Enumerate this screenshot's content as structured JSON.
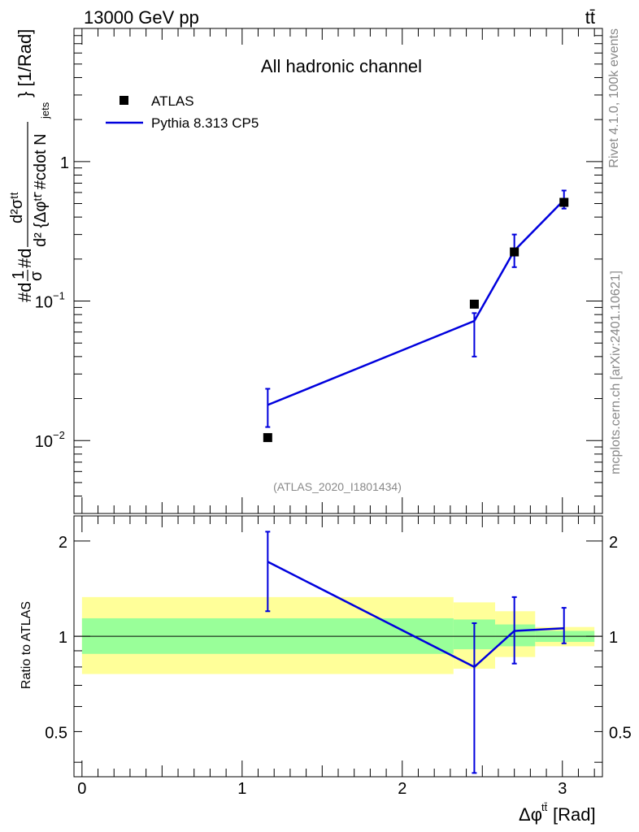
{
  "header": {
    "energy_label": "13000 GeV pp",
    "process_label": "tt̄"
  },
  "side_labels": {
    "rivet": "Rivet 4.1.0,  100k events",
    "mcplots": "mcplots.cern.ch [arXiv:2401.10621]"
  },
  "chart_data": [
    {
      "type": "scatter",
      "title": "All hadronic channel",
      "analysis_label": "(ATLAS_2020_I1801434)",
      "ylabel": "#d1/σ#d d²σ^tt / d²{Δφ^tt̄ #cdot N_jets} [1/Rad]",
      "ylabel_parts": {
        "left": "#d",
        "frac_num": "1",
        "frac_den": "σ",
        "mid": "#d",
        "big_num": "d²σᵗᵗ",
        "big_den": "d² {Δφᵗᵗ̄ #cdot N",
        "big_den_sub": "jets",
        "units": "} [1/Rad]"
      },
      "yscale": "log",
      "ylim": [
        0.003,
        9
      ],
      "xlim": [
        -0.05,
        3.25
      ],
      "yticks": [
        {
          "value": 0.01,
          "label": "10",
          "sup": "−2"
        },
        {
          "value": 0.1,
          "label": "10",
          "sup": "−1"
        },
        {
          "value": 1,
          "label": "1",
          "sup": ""
        }
      ],
      "legend": [
        "ATLAS",
        "Pythia 8.313 CP5"
      ],
      "legend_placement": "top-left",
      "series": [
        {
          "name": "ATLAS",
          "style": "markers",
          "color": "#000000",
          "x": [
            1.16,
            2.45,
            2.7,
            3.01
          ],
          "y": [
            0.0105,
            0.095,
            0.225,
            0.51
          ],
          "err_low": [
            0.0005,
            0.008,
            0.02,
            0.04
          ],
          "err_high": [
            0.0005,
            0.008,
            0.02,
            0.04
          ]
        },
        {
          "name": "Pythia 8.313 CP5",
          "style": "line",
          "color": "#0000dd",
          "x": [
            1.16,
            2.45,
            2.7,
            3.01
          ],
          "y": [
            0.018,
            0.072,
            0.23,
            0.53
          ],
          "err_low": [
            0.0055,
            0.032,
            0.055,
            0.07
          ],
          "err_high": [
            0.0055,
            0.01,
            0.07,
            0.09
          ]
        }
      ]
    },
    {
      "type": "line",
      "ylabel": "Ratio to ATLAS",
      "xlabel": "Δφ^tt̄ [Rad]",
      "xlabel_parts": {
        "main": "Δφ",
        "sup": "tt̄",
        "units": " [Rad]"
      },
      "yscale": "log",
      "ylim": [
        0.36,
        2.4
      ],
      "xlim": [
        -0.05,
        3.25
      ],
      "xticks": [
        0,
        1,
        2,
        3
      ],
      "yticks": [
        {
          "value": 0.5,
          "label": "0.5"
        },
        {
          "value": 1,
          "label": "1"
        },
        {
          "value": 2,
          "label": "2"
        }
      ],
      "reference_line": 1,
      "bands": [
        {
          "name": "outer",
          "color": "#ffff99",
          "bins": [
            {
              "x0": 0.0,
              "x1": 2.32,
              "lo": 0.76,
              "hi": 1.33
            },
            {
              "x0": 2.32,
              "x1": 2.58,
              "lo": 0.79,
              "hi": 1.28
            },
            {
              "x0": 2.58,
              "x1": 2.83,
              "lo": 0.86,
              "hi": 1.2
            },
            {
              "x0": 2.83,
              "x1": 3.2,
              "lo": 0.93,
              "hi": 1.07
            }
          ]
        },
        {
          "name": "inner",
          "color": "#99ff99",
          "bins": [
            {
              "x0": 0.0,
              "x1": 2.32,
              "lo": 0.88,
              "hi": 1.14
            },
            {
              "x0": 2.32,
              "x1": 2.58,
              "lo": 0.91,
              "hi": 1.13
            },
            {
              "x0": 2.58,
              "x1": 2.83,
              "lo": 0.93,
              "hi": 1.09
            },
            {
              "x0": 2.83,
              "x1": 3.2,
              "lo": 0.96,
              "hi": 1.04
            }
          ]
        }
      ],
      "series": [
        {
          "name": "Pythia 8.313 CP5",
          "color": "#0000dd",
          "x": [
            1.16,
            2.45,
            2.7,
            3.01
          ],
          "y": [
            1.72,
            0.8,
            1.04,
            1.06
          ],
          "err_low": [
            0.52,
            0.43,
            0.22,
            0.11
          ],
          "err_high": [
            0.42,
            0.3,
            0.29,
            0.17
          ]
        }
      ]
    }
  ]
}
